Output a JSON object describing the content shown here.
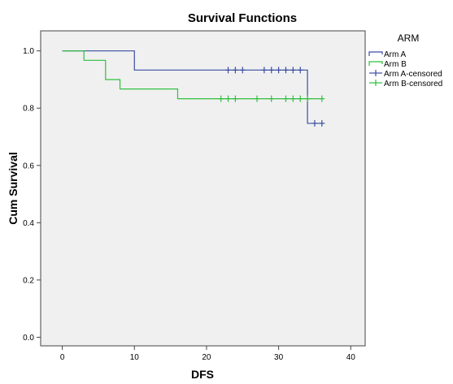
{
  "chart_data": {
    "type": "line",
    "step": true,
    "title": "Survival Functions",
    "xlabel": "DFS",
    "ylabel": "Cum Survival",
    "xlim": [
      -3,
      42
    ],
    "ylim": [
      -0.03,
      1.07
    ],
    "x_ticks": [
      "0",
      "10",
      "20",
      "30",
      "40"
    ],
    "x_tick_values": [
      0,
      10,
      20,
      30,
      40
    ],
    "y_ticks": [
      "0.0",
      "0.2",
      "0.4",
      "0.6",
      "0.8",
      "1.0"
    ],
    "y_tick_values": [
      0.0,
      0.2,
      0.4,
      0.6,
      0.8,
      1.0
    ],
    "grid": false,
    "legend": {
      "title": "ARM",
      "position": "right",
      "entries": [
        "Arm A",
        "Arm B",
        "Arm A-censored",
        "Arm B-censored"
      ]
    },
    "series": [
      {
        "name": "Arm A",
        "color": "#3a4ea3",
        "steps": [
          [
            0,
            1.0
          ],
          [
            10,
            0.933
          ],
          [
            34,
            0.747
          ],
          [
            36,
            0.747
          ]
        ],
        "censored": [
          [
            23,
            0.933
          ],
          [
            24,
            0.933
          ],
          [
            25,
            0.933
          ],
          [
            28,
            0.933
          ],
          [
            29,
            0.933
          ],
          [
            30,
            0.933
          ],
          [
            31,
            0.933
          ],
          [
            32,
            0.933
          ],
          [
            33,
            0.933
          ],
          [
            35,
            0.747
          ],
          [
            36,
            0.747
          ]
        ]
      },
      {
        "name": "Arm B",
        "color": "#2fbf3f",
        "steps": [
          [
            0,
            1.0
          ],
          [
            3,
            0.967
          ],
          [
            6,
            0.9
          ],
          [
            8,
            0.867
          ],
          [
            16,
            0.833
          ],
          [
            36,
            0.833
          ]
        ],
        "censored": [
          [
            22,
            0.833
          ],
          [
            23,
            0.833
          ],
          [
            24,
            0.833
          ],
          [
            27,
            0.833
          ],
          [
            29,
            0.833
          ],
          [
            31,
            0.833
          ],
          [
            32,
            0.833
          ],
          [
            33,
            0.833
          ],
          [
            34,
            0.833
          ],
          [
            36,
            0.833
          ]
        ]
      }
    ]
  }
}
